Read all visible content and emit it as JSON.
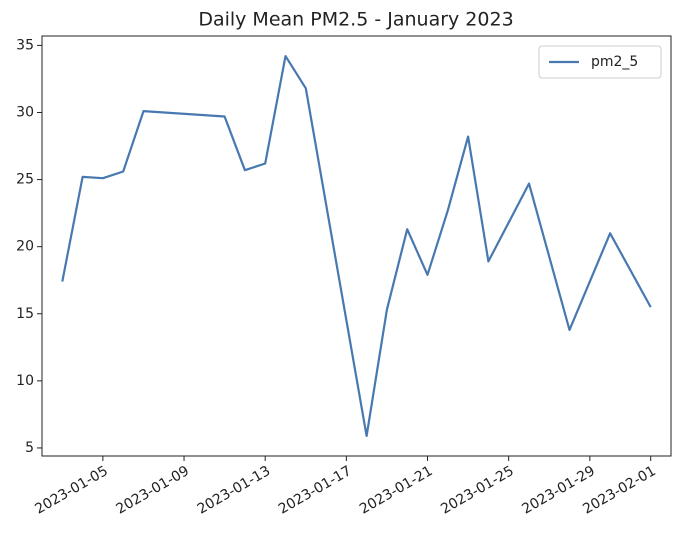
{
  "chart_data": {
    "type": "line",
    "title": "Daily Mean PM2.5 - January 2023",
    "x": [
      "2023-01-03",
      "2023-01-04",
      "2023-01-05",
      "2023-01-06",
      "2023-01-07",
      "2023-01-11",
      "2023-01-12",
      "2023-01-13",
      "2023-01-14",
      "2023-01-15",
      "2023-01-18",
      "2023-01-19",
      "2023-01-20",
      "2023-01-21",
      "2023-01-22",
      "2023-01-23",
      "2023-01-24",
      "2023-01-26",
      "2023-01-28",
      "2023-01-30",
      "2023-02-01"
    ],
    "series": [
      {
        "name": "pm2_5",
        "color": "#4878b0",
        "values": [
          17.4,
          25.2,
          25.1,
          25.6,
          30.1,
          29.7,
          25.7,
          26.2,
          34.2,
          31.8,
          5.9,
          15.3,
          21.3,
          17.9,
          22.7,
          28.2,
          18.9,
          24.7,
          13.8,
          21.0,
          15.5
        ]
      }
    ],
    "xlim": [
      "2023-01-02",
      "2023-02-02"
    ],
    "xticks": [
      "2023-01-05",
      "2023-01-09",
      "2023-01-13",
      "2023-01-17",
      "2023-01-21",
      "2023-01-25",
      "2023-01-29",
      "2023-02-01"
    ],
    "ylim": [
      4.4,
      35.7
    ],
    "yticks": [
      5,
      10,
      15,
      20,
      25,
      30,
      35
    ],
    "legend": "upper right"
  }
}
